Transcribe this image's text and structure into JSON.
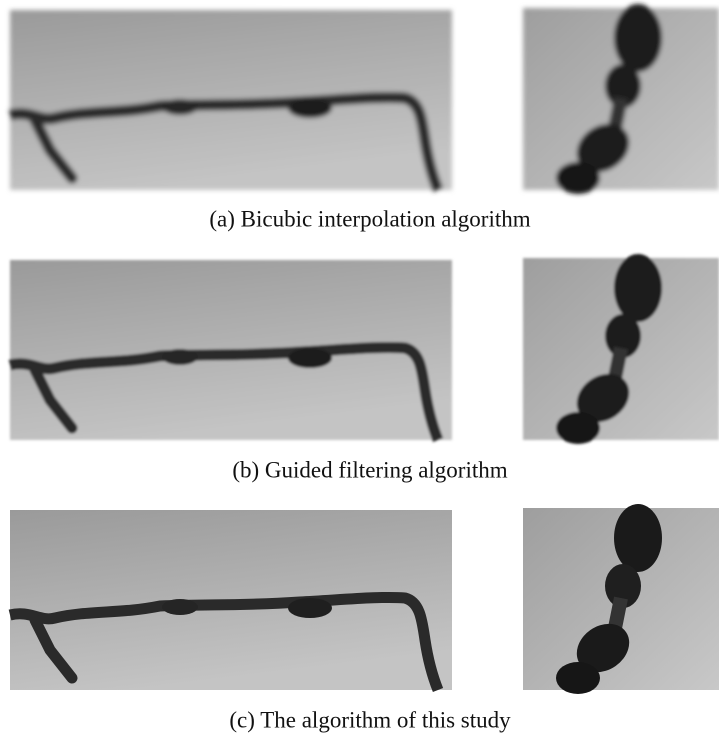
{
  "figures": [
    {
      "caption": "(a) Bicubic interpolation algorithm"
    },
    {
      "caption": "(b) Guided filtering algorithm"
    },
    {
      "caption": "(c) The algorithm of this study"
    }
  ]
}
